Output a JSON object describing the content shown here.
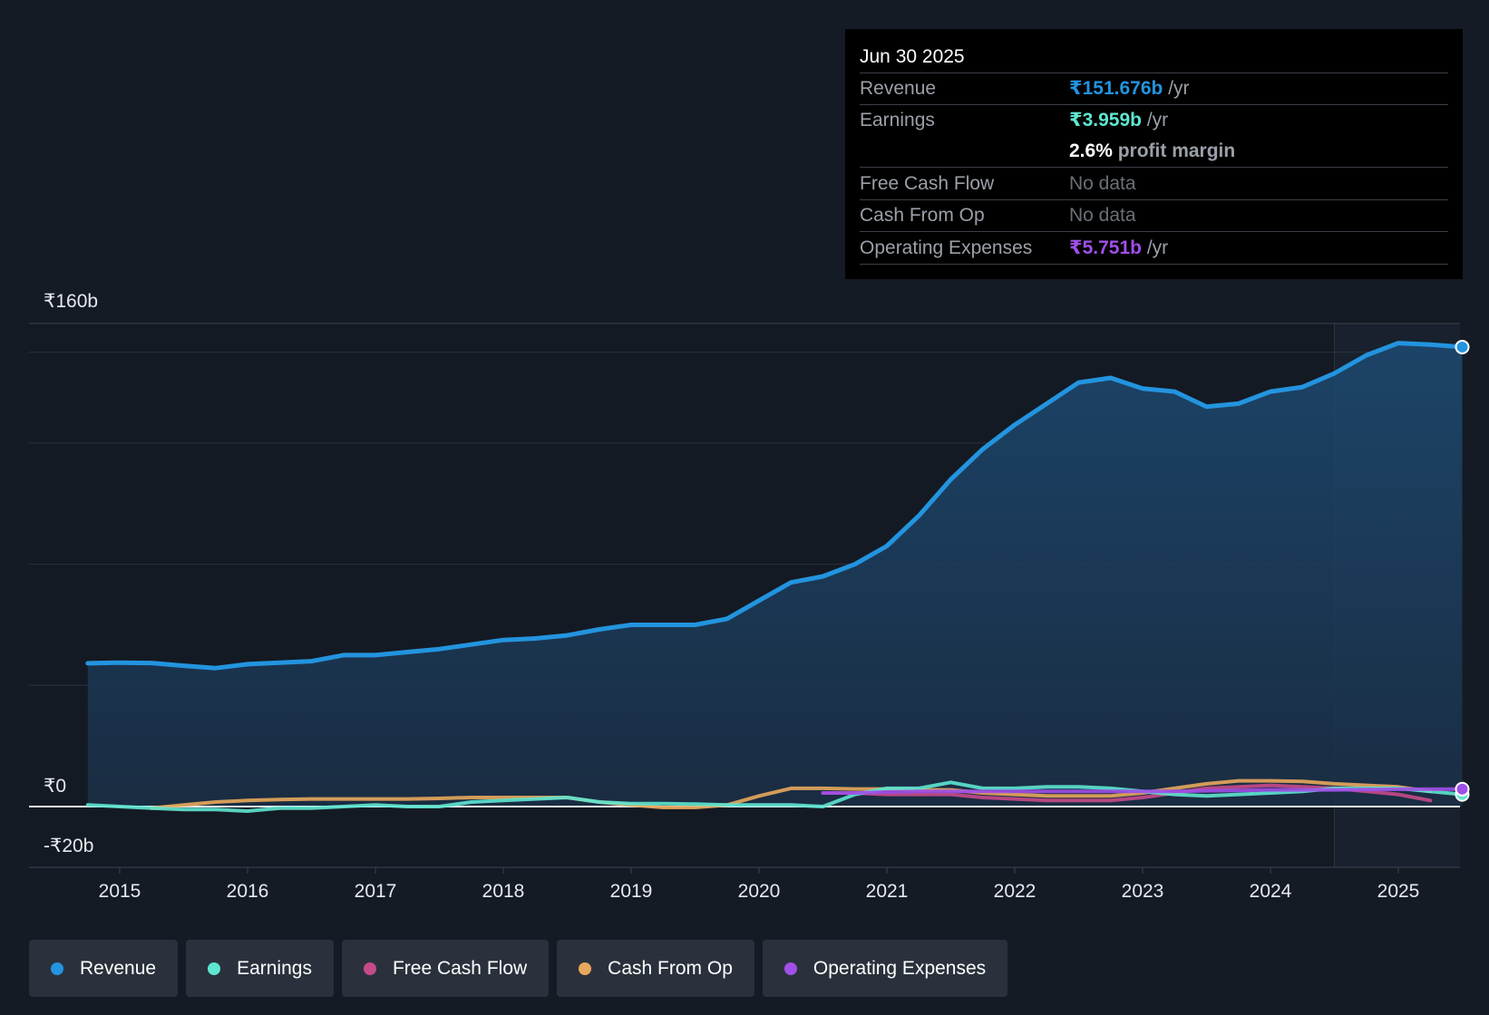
{
  "chart_data": {
    "type": "line",
    "title": "",
    "currency": "₹",
    "y_unit": "b",
    "ylim": [
      -20,
      160
    ],
    "x_ticks": [
      "2015",
      "2016",
      "2017",
      "2018",
      "2019",
      "2020",
      "2021",
      "2022",
      "2023",
      "2024",
      "2025"
    ],
    "y_labels": {
      "top": "₹160b",
      "zero": "₹0",
      "bottom": "-₹20b"
    },
    "highlight_from": 2024.5,
    "series": [
      {
        "name": "Revenue",
        "color": "#2394df",
        "fill": true,
        "points": [
          [
            2014.75,
            47.3
          ],
          [
            2015.0,
            47.5
          ],
          [
            2015.25,
            47.4
          ],
          [
            2015.5,
            46.5
          ],
          [
            2015.75,
            45.7
          ],
          [
            2016.0,
            47.0
          ],
          [
            2016.25,
            47.5
          ],
          [
            2016.5,
            48.0
          ],
          [
            2016.75,
            50.0
          ],
          [
            2017.0,
            50.0
          ],
          [
            2017.25,
            51.0
          ],
          [
            2017.5,
            52.0
          ],
          [
            2017.75,
            53.5
          ],
          [
            2018.0,
            55.0
          ],
          [
            2018.25,
            55.5
          ],
          [
            2018.5,
            56.5
          ],
          [
            2018.75,
            58.5
          ],
          [
            2019.0,
            60.0
          ],
          [
            2019.25,
            60.0
          ],
          [
            2019.5,
            60.0
          ],
          [
            2019.75,
            62.0
          ],
          [
            2020.0,
            68.0
          ],
          [
            2020.25,
            74.0
          ],
          [
            2020.5,
            76.0
          ],
          [
            2020.75,
            80.0
          ],
          [
            2021.0,
            86.0
          ],
          [
            2021.25,
            96.0
          ],
          [
            2021.5,
            108.0
          ],
          [
            2021.75,
            118.0
          ],
          [
            2022.0,
            126.0
          ],
          [
            2022.25,
            133.0
          ],
          [
            2022.5,
            140.0
          ],
          [
            2022.75,
            141.5
          ],
          [
            2023.0,
            138.0
          ],
          [
            2023.25,
            137.0
          ],
          [
            2023.5,
            132.0
          ],
          [
            2023.75,
            133.0
          ],
          [
            2024.0,
            137.0
          ],
          [
            2024.25,
            138.5
          ],
          [
            2024.5,
            143.0
          ],
          [
            2024.75,
            149.0
          ],
          [
            2025.0,
            153.0
          ],
          [
            2025.25,
            152.5
          ],
          [
            2025.5,
            151.7
          ]
        ]
      },
      {
        "name": "Earnings",
        "color": "#5ee6d0",
        "fill": false,
        "points": [
          [
            2014.75,
            0.5
          ],
          [
            2015.0,
            0.0
          ],
          [
            2015.25,
            -0.5
          ],
          [
            2015.5,
            -1.0
          ],
          [
            2015.75,
            -1.0
          ],
          [
            2016.0,
            -1.5
          ],
          [
            2016.25,
            -0.5
          ],
          [
            2016.5,
            -0.5
          ],
          [
            2016.75,
            0.0
          ],
          [
            2017.0,
            0.5
          ],
          [
            2017.25,
            0.0
          ],
          [
            2017.5,
            0.0
          ],
          [
            2017.75,
            1.5
          ],
          [
            2018.0,
            2.0
          ],
          [
            2018.25,
            2.5
          ],
          [
            2018.5,
            3.0
          ],
          [
            2018.75,
            1.5
          ],
          [
            2019.0,
            1.0
          ],
          [
            2019.25,
            1.0
          ],
          [
            2019.5,
            0.8
          ],
          [
            2019.75,
            0.5
          ],
          [
            2020.0,
            0.5
          ],
          [
            2020.25,
            0.5
          ],
          [
            2020.5,
            0.0
          ],
          [
            2020.75,
            4.0
          ],
          [
            2021.0,
            6.0
          ],
          [
            2021.25,
            6.0
          ],
          [
            2021.5,
            8.0
          ],
          [
            2021.75,
            6.0
          ],
          [
            2022.0,
            6.0
          ],
          [
            2022.25,
            6.5
          ],
          [
            2022.5,
            6.5
          ],
          [
            2022.75,
            6.0
          ],
          [
            2023.0,
            5.0
          ],
          [
            2023.25,
            4.0
          ],
          [
            2023.5,
            3.5
          ],
          [
            2023.75,
            4.0
          ],
          [
            2024.0,
            4.5
          ],
          [
            2024.25,
            5.0
          ],
          [
            2024.5,
            6.0
          ],
          [
            2024.75,
            6.0
          ],
          [
            2025.0,
            6.0
          ],
          [
            2025.25,
            5.0
          ],
          [
            2025.5,
            4.0
          ]
        ]
      },
      {
        "name": "Free Cash Flow",
        "color": "#c54a8a",
        "fill": false,
        "points": [
          [
            2020.5,
            4.5
          ],
          [
            2020.75,
            4.5
          ],
          [
            2021.0,
            4.0
          ],
          [
            2021.25,
            4.0
          ],
          [
            2021.5,
            4.0
          ],
          [
            2021.75,
            3.0
          ],
          [
            2022.0,
            2.5
          ],
          [
            2022.25,
            2.0
          ],
          [
            2022.5,
            2.0
          ],
          [
            2022.75,
            2.0
          ],
          [
            2023.0,
            3.0
          ],
          [
            2023.25,
            4.5
          ],
          [
            2023.5,
            6.0
          ],
          [
            2023.75,
            6.5
          ],
          [
            2024.0,
            7.0
          ],
          [
            2024.25,
            6.5
          ],
          [
            2024.5,
            6.0
          ],
          [
            2024.75,
            5.0
          ],
          [
            2025.0,
            4.0
          ],
          [
            2025.25,
            2.0
          ]
        ]
      },
      {
        "name": "Cash From Op",
        "color": "#e8a85c",
        "fill": false,
        "points": [
          [
            2015.25,
            -0.5
          ],
          [
            2015.5,
            0.5
          ],
          [
            2015.75,
            1.5
          ],
          [
            2016.0,
            2.0
          ],
          [
            2016.25,
            2.3
          ],
          [
            2016.5,
            2.5
          ],
          [
            2016.75,
            2.5
          ],
          [
            2017.0,
            2.5
          ],
          [
            2017.25,
            2.5
          ],
          [
            2017.5,
            2.7
          ],
          [
            2017.75,
            3.0
          ],
          [
            2018.0,
            3.0
          ],
          [
            2018.25,
            3.0
          ],
          [
            2018.5,
            3.0
          ],
          [
            2018.75,
            1.5
          ],
          [
            2019.0,
            0.5
          ],
          [
            2019.25,
            -0.3
          ],
          [
            2019.5,
            -0.3
          ],
          [
            2019.75,
            0.5
          ],
          [
            2020.0,
            3.5
          ],
          [
            2020.25,
            6.0
          ],
          [
            2020.5,
            6.0
          ],
          [
            2020.75,
            5.8
          ],
          [
            2021.0,
            5.8
          ],
          [
            2021.25,
            5.5
          ],
          [
            2021.5,
            5.5
          ],
          [
            2021.75,
            4.5
          ],
          [
            2022.0,
            4.0
          ],
          [
            2022.25,
            3.5
          ],
          [
            2022.5,
            3.5
          ],
          [
            2022.75,
            3.5
          ],
          [
            2023.0,
            4.5
          ],
          [
            2023.25,
            6.0
          ],
          [
            2023.5,
            7.5
          ],
          [
            2023.75,
            8.5
          ],
          [
            2024.0,
            8.5
          ],
          [
            2024.25,
            8.3
          ],
          [
            2024.5,
            7.5
          ],
          [
            2024.75,
            7.0
          ],
          [
            2025.0,
            6.5
          ],
          [
            2025.25,
            5.0
          ]
        ]
      },
      {
        "name": "Operating Expenses",
        "color": "#a04fe8",
        "fill": false,
        "points": [
          [
            2020.5,
            4.5
          ],
          [
            2020.75,
            4.5
          ],
          [
            2021.0,
            4.8
          ],
          [
            2021.25,
            5.0
          ],
          [
            2021.5,
            5.0
          ],
          [
            2021.75,
            5.0
          ],
          [
            2022.0,
            5.0
          ],
          [
            2022.25,
            5.0
          ],
          [
            2022.5,
            5.0
          ],
          [
            2022.75,
            5.0
          ],
          [
            2023.0,
            5.0
          ],
          [
            2023.25,
            5.0
          ],
          [
            2023.5,
            5.2
          ],
          [
            2023.75,
            5.3
          ],
          [
            2024.0,
            5.5
          ],
          [
            2024.25,
            5.5
          ],
          [
            2024.5,
            5.5
          ],
          [
            2024.75,
            5.6
          ],
          [
            2025.0,
            5.7
          ],
          [
            2025.5,
            5.75
          ]
        ]
      }
    ]
  },
  "tooltip": {
    "date": "Jun 30 2025",
    "revenue_label": "Revenue",
    "revenue_value": "₹151.676b",
    "revenue_unit": " /yr",
    "earnings_label": "Earnings",
    "earnings_value": "₹3.959b",
    "earnings_unit": " /yr",
    "margin_value": "2.6%",
    "margin_label": " profit margin",
    "fcf_label": "Free Cash Flow",
    "fcf_value": "No data",
    "cfo_label": "Cash From Op",
    "cfo_value": "No data",
    "opex_label": "Operating Expenses",
    "opex_value": "₹5.751b",
    "opex_unit": " /yr"
  },
  "legend": [
    {
      "label": "Revenue",
      "color": "#2394df"
    },
    {
      "label": "Earnings",
      "color": "#5ee6d0"
    },
    {
      "label": "Free Cash Flow",
      "color": "#c54a8a"
    },
    {
      "label": "Cash From Op",
      "color": "#e8a85c"
    },
    {
      "label": "Operating Expenses",
      "color": "#a04fe8"
    }
  ],
  "colors": {
    "revenue": "#2394df",
    "earnings": "#5ee6d0",
    "margin": "#ffffff",
    "opex": "#a04fe8"
  }
}
